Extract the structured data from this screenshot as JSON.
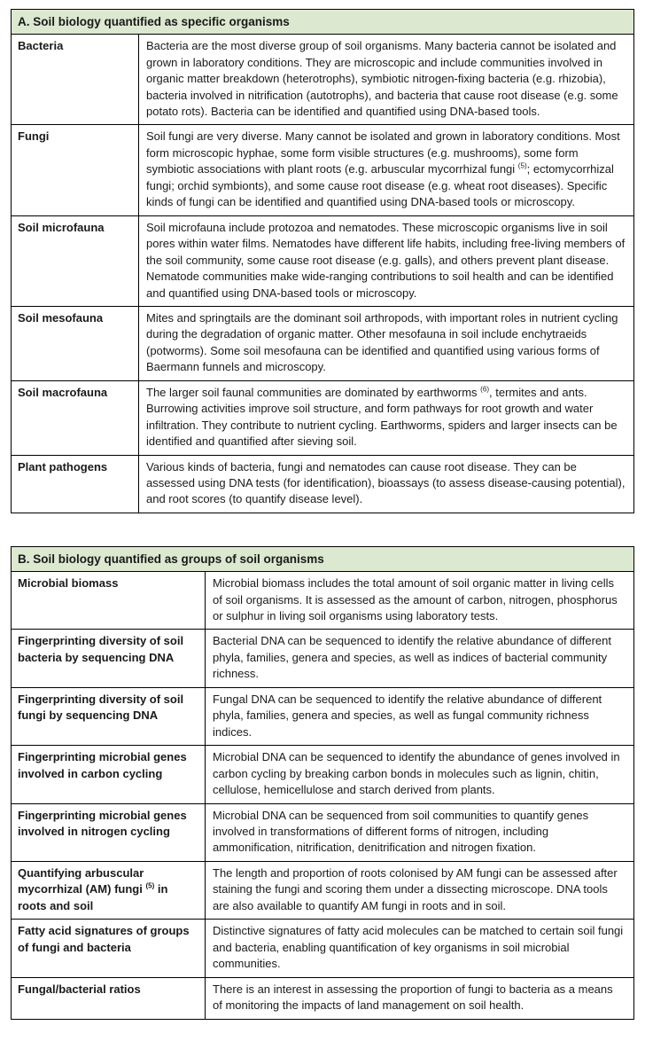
{
  "colors": {
    "header_bg": "#dce8d0",
    "border": "#000000",
    "text": "#1a1a1a",
    "page_bg": "#ffffff"
  },
  "table_a": {
    "header": "A. Soil biology quantified as specific organisms",
    "rows": [
      {
        "label": "Bacteria",
        "desc": "Bacteria are the most diverse group of soil organisms. Many bacteria cannot be isolated and grown in laboratory conditions. They are microscopic and include communities involved in organic matter breakdown (heterotrophs), symbiotic nitrogen-fixing bacteria (e.g. rhizobia), bacteria involved in nitrification (autotrophs), and bacteria that cause root disease (e.g. some potato rots). Bacteria can be identified and quantified using DNA-based tools."
      },
      {
        "label": "Fungi",
        "desc": "Soil fungi are very diverse. Many cannot be isolated and grown in laboratory conditions. Most form microscopic hyphae, some form visible structures (e.g. mushrooms), some form symbiotic associations with plant roots (e.g. arbuscular mycorrhizal fungi ^{(5)}; ectomycorrhizal fungi; orchid symbionts), and some cause root disease (e.g. wheat root diseases). Specific kinds of fungi can be identified and quantified using DNA-based tools or microscopy."
      },
      {
        "label": "Soil microfauna",
        "desc": "Soil microfauna include protozoa and nematodes. These microscopic organisms live in soil pores within water films. Nematodes have different life habits, including free-living members of the soil community, some cause root disease (e.g. galls), and others prevent plant disease. Nematode communities make wide-ranging contributions to soil health and can be identified and quantified using DNA-based tools or microscopy."
      },
      {
        "label": "Soil mesofauna",
        "desc": "Mites and springtails are the dominant soil arthropods, with important roles in nutrient cycling during the degradation of organic matter. Other mesofauna in soil include enchytraeids (potworms). Some soil mesofauna can be identified and quantified using various forms of Baermann funnels and microscopy."
      },
      {
        "label": "Soil macrofauna",
        "desc": "The larger soil faunal communities are dominated by earthworms ^{(6)}, termites and ants. Burrowing activities improve soil structure, and form pathways for root growth and water infiltration. They contribute to nutrient cycling. Earthworms, spiders and larger insects can be identified and quantified after sieving soil."
      },
      {
        "label": "Plant pathogens",
        "desc": "Various kinds of bacteria, fungi and nematodes can cause root disease. They can be assessed using DNA tests (for identification), bioassays (to assess disease-causing potential), and root scores (to quantify disease level)."
      }
    ]
  },
  "table_b": {
    "header": "B. Soil biology quantified as groups of soil organisms",
    "rows": [
      {
        "label": "Microbial biomass",
        "desc": "Microbial biomass includes the total amount of soil organic matter in living cells of soil organisms. It is assessed as the amount of carbon, nitrogen, phosphorus or sulphur in living soil organisms using laboratory tests."
      },
      {
        "label": "Fingerprinting diversity of soil bacteria by sequencing DNA",
        "desc": "Bacterial DNA can be sequenced to identify the relative abundance of different phyla, families, genera and species, as well as indices of bacterial community richness."
      },
      {
        "label": "Fingerprinting diversity of soil fungi by sequencing DNA",
        "desc": "Fungal DNA can be sequenced to identify the relative abundance of different phyla, families, genera and species, as well as fungal community richness indices."
      },
      {
        "label": "Fingerprinting microbial genes involved in carbon cycling",
        "desc": "Microbial DNA can be sequenced to identify the abundance of genes involved in carbon cycling by breaking carbon bonds in molecules such as lignin, chitin, cellulose, hemicellulose and starch derived from plants."
      },
      {
        "label": "Fingerprinting microbial genes involved in nitrogen cycling",
        "desc": "Microbial DNA can be sequenced from soil communities to quantify genes involved in transformations of different forms of nitrogen, including ammonification, nitrification, denitrification and nitrogen fixation."
      },
      {
        "label": "Quantifying arbuscular mycorrhizal (AM) fungi ^{(5)} in roots and soil",
        "desc": "The length and proportion of roots colonised by AM fungi can be assessed after staining the fungi and scoring them under a dissecting microscope. DNA tools are also available to quantify AM fungi in roots and in soil."
      },
      {
        "label": "Fatty acid signatures of groups of fungi and bacteria",
        "desc": "Distinctive signatures of fatty acid molecules can be matched to certain soil fungi and bacteria, enabling quantification of key organisms in soil microbial communities."
      },
      {
        "label": "Fungal/bacterial ratios",
        "desc": "There is an interest in assessing the proportion of fungi to bacteria as a means of monitoring the impacts of land management on soil health."
      }
    ]
  }
}
